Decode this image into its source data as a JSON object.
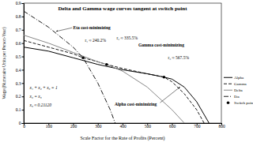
{
  "chart_data": {
    "type": "line",
    "title": "Delta and Gamma wage curves tangent at switch point",
    "x_label": "Scale Factor for the Rate of Profits (Percent)",
    "y_label": "Wage (Numeraire Units per Person-Year)",
    "xlim": [
      0,
      800
    ],
    "xticks": [
      0,
      100,
      200,
      300,
      400,
      500,
      600,
      700,
      800
    ],
    "ylim": [
      0,
      0.9
    ],
    "yticks": [
      0,
      0.1,
      0.2,
      0.3,
      0.4,
      0.5,
      0.6,
      0.7,
      0.8,
      0.9
    ],
    "legend": "right",
    "series": [
      {
        "name": "Alpha",
        "color": "#000000",
        "line_style": "solid",
        "x": [
          0,
          100,
          200,
          300,
          400,
          500,
          567.5,
          600,
          650,
          700,
          750
        ],
        "values": [
          0.57,
          0.54,
          0.49,
          0.44,
          0.4,
          0.37,
          0.345,
          0.33,
          0.27,
          0.16,
          0
        ]
      },
      {
        "name": "Gamma",
        "color": "#000000",
        "line_style": "dashed",
        "x": [
          0,
          100,
          200,
          240.2,
          300,
          335.5,
          400,
          500,
          567.5,
          600,
          650,
          700,
          730
        ],
        "values": [
          0.62,
          0.57,
          0.52,
          0.49,
          0.46,
          0.44,
          0.41,
          0.37,
          0.345,
          0.31,
          0.22,
          0.1,
          0
        ]
      },
      {
        "name": "Delta",
        "color": "#888888",
        "line_style": "solid",
        "x": [
          0,
          100,
          200,
          300,
          335.5,
          400,
          500,
          600,
          650
        ],
        "values": [
          0.66,
          0.6,
          0.53,
          0.46,
          0.44,
          0.39,
          0.27,
          0.1,
          0
        ]
      },
      {
        "name": "Eta",
        "color": "#000000",
        "line_style": "dashdot",
        "x": [
          0,
          100,
          200,
          240.2,
          300,
          350,
          370
        ],
        "values": [
          0.84,
          0.72,
          0.57,
          0.49,
          0.3,
          0.1,
          0
        ]
      },
      {
        "name": "Switch point",
        "type": "scatter",
        "color": "#000000",
        "marker": "circle",
        "x": [
          240.2,
          335.5,
          567.5
        ],
        "values": [
          0.49,
          0.44,
          0.345
        ]
      }
    ],
    "annotations": [
      "Eta cost-minimizing",
      "r₁ ≈ 240.2%",
      "r₂ ≈ 335.5%",
      "Gamma cost-minimizing",
      "r₃ ≈ 567.5%",
      "Alpha cost-minimizing",
      "x₁ + x₂ + x₃ = 1",
      "x₂ = x₃",
      "x₃ ≈ 0.21120"
    ]
  }
}
